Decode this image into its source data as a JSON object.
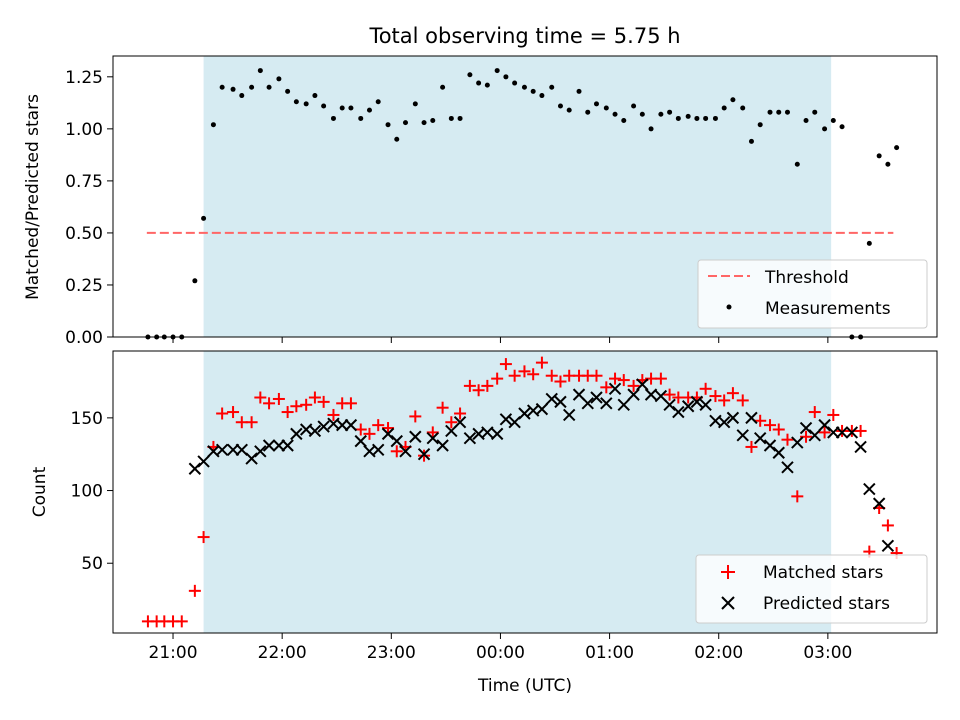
{
  "figure": {
    "title": "Total observing time = 5.75 h",
    "xlabel": "Time (UTC)",
    "x_ticks": [
      "21:00",
      "22:00",
      "23:00",
      "00:00",
      "01:00",
      "02:00",
      "03:00"
    ]
  },
  "chart_data": [
    {
      "type": "scatter",
      "ylabel": "Matched/Predicted stars",
      "xlim": [
        -0.55,
        7.0
      ],
      "ylim": [
        0,
        1.35
      ],
      "y_ticks": [
        "0.00",
        "0.25",
        "0.50",
        "0.75",
        "1.00",
        "1.25"
      ],
      "y_tick_values": [
        0,
        0.25,
        0.5,
        0.75,
        1.0,
        1.25
      ],
      "span": {
        "x0": 0.28,
        "x1": 6.03,
        "color": "#add8e6"
      },
      "threshold": {
        "name": "Threshold",
        "y": 0.5,
        "x0": -0.24,
        "x1": 6.6,
        "color": "#ff6666"
      },
      "legend": [
        "Threshold",
        "Measurements"
      ],
      "legend_loc": "lower right",
      "series": [
        {
          "name": "Measurements",
          "color": "#000000",
          "x": [
            -0.23,
            -0.15,
            -0.08,
            0.0,
            0.08,
            0.2,
            0.28,
            0.37,
            0.45,
            0.55,
            0.63,
            0.72,
            0.8,
            0.88,
            0.97,
            1.05,
            1.13,
            1.22,
            1.3,
            1.38,
            1.47,
            1.55,
            1.63,
            1.72,
            1.8,
            1.88,
            1.97,
            2.05,
            2.13,
            2.22,
            2.3,
            2.38,
            2.47,
            2.55,
            2.63,
            2.72,
            2.8,
            2.88,
            2.97,
            3.05,
            3.13,
            3.22,
            3.3,
            3.38,
            3.47,
            3.55,
            3.63,
            3.72,
            3.8,
            3.88,
            3.97,
            4.05,
            4.13,
            4.22,
            4.3,
            4.38,
            4.47,
            4.55,
            4.63,
            4.72,
            4.8,
            4.88,
            4.97,
            5.05,
            5.13,
            5.22,
            5.3,
            5.38,
            5.47,
            5.55,
            5.63,
            5.72,
            5.8,
            5.88,
            5.97,
            6.05,
            6.13,
            6.22,
            6.3,
            6.38,
            6.47,
            6.55,
            6.63
          ],
          "y": [
            0,
            0,
            0,
            0,
            0,
            0.27,
            0.57,
            1.02,
            1.2,
            1.19,
            1.16,
            1.2,
            1.28,
            1.2,
            1.24,
            1.18,
            1.13,
            1.12,
            1.16,
            1.11,
            1.05,
            1.1,
            1.1,
            1.05,
            1.09,
            1.13,
            1.02,
            0.95,
            1.03,
            1.12,
            1.03,
            1.04,
            1.2,
            1.05,
            1.05,
            1.26,
            1.22,
            1.21,
            1.28,
            1.25,
            1.22,
            1.2,
            1.18,
            1.16,
            1.2,
            1.11,
            1.09,
            1.18,
            1.08,
            1.12,
            1.1,
            1.07,
            1.04,
            1.11,
            1.07,
            1.0,
            1.07,
            1.08,
            1.05,
            1.06,
            1.05,
            1.05,
            1.05,
            1.1,
            1.14,
            1.1,
            0.94,
            1.02,
            1.08,
            1.08,
            1.08,
            0.83,
            1.04,
            1.08,
            1.0,
            1.04,
            1.01,
            0,
            0,
            0.45,
            0.87,
            0.83,
            0.91
          ]
        }
      ]
    },
    {
      "type": "scatter",
      "ylabel": "Count",
      "xlim": [
        -0.55,
        7.0
      ],
      "ylim": [
        2,
        196
      ],
      "y_ticks": [
        "50",
        "100",
        "150"
      ],
      "y_tick_values": [
        50,
        100,
        150
      ],
      "span": {
        "x0": 0.28,
        "x1": 6.03,
        "color": "#add8e6"
      },
      "legend": [
        "Matched stars",
        "Predicted stars"
      ],
      "legend_loc": "lower right",
      "series": [
        {
          "name": "Matched stars",
          "marker": "+",
          "color": "#ff0000",
          "x": [
            -0.23,
            -0.15,
            -0.08,
            0.0,
            0.08,
            0.2,
            0.28,
            0.37,
            0.45,
            0.55,
            0.63,
            0.72,
            0.8,
            0.88,
            0.97,
            1.05,
            1.13,
            1.22,
            1.3,
            1.38,
            1.47,
            1.55,
            1.63,
            1.72,
            1.8,
            1.88,
            1.97,
            2.05,
            2.13,
            2.22,
            2.3,
            2.38,
            2.47,
            2.55,
            2.63,
            2.72,
            2.8,
            2.88,
            2.97,
            3.05,
            3.13,
            3.22,
            3.3,
            3.38,
            3.47,
            3.55,
            3.63,
            3.72,
            3.8,
            3.88,
            3.97,
            4.05,
            4.13,
            4.22,
            4.3,
            4.38,
            4.47,
            4.55,
            4.63,
            4.72,
            4.8,
            4.88,
            4.97,
            5.05,
            5.13,
            5.22,
            5.3,
            5.38,
            5.47,
            5.55,
            5.63,
            5.72,
            5.8,
            5.88,
            5.97,
            6.05,
            6.13,
            6.22,
            6.3,
            6.38,
            6.47,
            6.55,
            6.63
          ],
          "y": [
            10,
            10,
            10,
            10,
            10,
            31,
            68,
            130,
            153,
            154,
            147,
            147,
            164,
            160,
            163,
            154,
            158,
            159,
            164,
            161,
            152,
            160,
            160,
            142,
            139,
            145,
            143,
            127,
            130,
            151,
            124,
            140,
            157,
            147,
            153,
            172,
            169,
            172,
            177,
            187,
            179,
            182,
            180,
            188,
            179,
            175,
            179,
            179,
            179,
            179,
            171,
            177,
            176,
            172,
            176,
            177,
            177,
            166,
            164,
            164,
            164,
            170,
            165,
            162,
            167,
            162,
            130,
            148,
            145,
            142,
            135,
            96,
            137,
            154,
            140,
            152,
            141,
            141,
            141,
            58,
            88,
            76,
            57
          ]
        },
        {
          "name": "Predicted stars",
          "marker": "x",
          "color": "#000000",
          "x": [
            0.2,
            0.28,
            0.37,
            0.45,
            0.55,
            0.63,
            0.72,
            0.8,
            0.88,
            0.97,
            1.05,
            1.13,
            1.22,
            1.3,
            1.38,
            1.47,
            1.55,
            1.63,
            1.72,
            1.8,
            1.88,
            1.97,
            2.05,
            2.13,
            2.22,
            2.3,
            2.38,
            2.47,
            2.55,
            2.63,
            2.72,
            2.8,
            2.88,
            2.97,
            3.05,
            3.13,
            3.22,
            3.3,
            3.38,
            3.47,
            3.55,
            3.63,
            3.72,
            3.8,
            3.88,
            3.97,
            4.05,
            4.13,
            4.22,
            4.3,
            4.38,
            4.47,
            4.55,
            4.63,
            4.72,
            4.8,
            4.88,
            4.97,
            5.05,
            5.13,
            5.22,
            5.3,
            5.38,
            5.47,
            5.55,
            5.63,
            5.72,
            5.8,
            5.88,
            5.97,
            6.05,
            6.13,
            6.22,
            6.3,
            6.38,
            6.47,
            6.55
          ],
          "y": [
            115,
            120,
            127,
            128,
            128,
            128,
            122,
            127,
            131,
            131,
            131,
            139,
            142,
            141,
            144,
            146,
            145,
            145,
            134,
            127,
            128,
            139,
            134,
            127,
            137,
            125,
            136,
            131,
            141,
            147,
            136,
            139,
            140,
            139,
            149,
            147,
            153,
            155,
            156,
            163,
            161,
            152,
            166,
            160,
            164,
            160,
            170,
            159,
            166,
            173,
            166,
            165,
            159,
            154,
            158,
            161,
            159,
            148,
            147,
            150,
            138,
            150,
            136,
            131,
            126,
            116,
            133,
            143,
            138,
            145,
            140,
            140,
            140,
            130,
            101,
            91,
            62
          ]
        }
      ]
    }
  ]
}
